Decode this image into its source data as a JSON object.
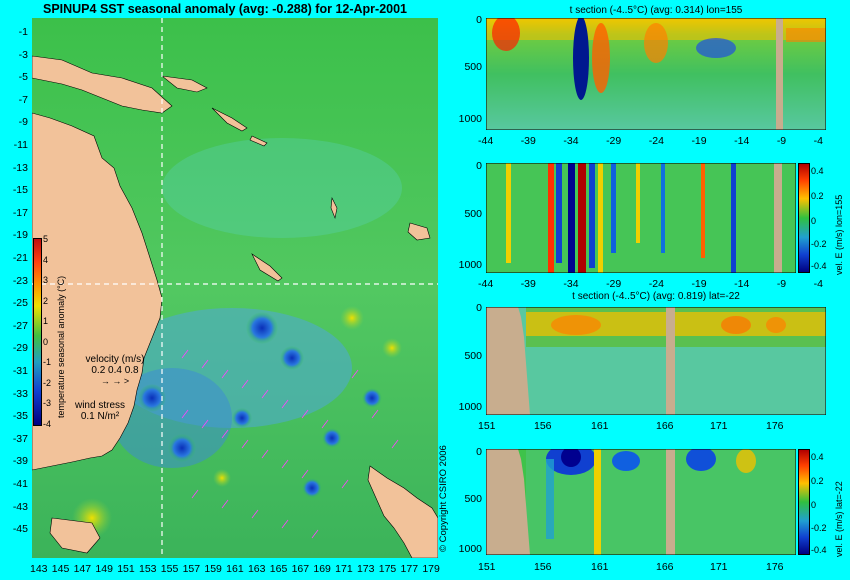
{
  "map": {
    "title": "SPINUP4 SST seasonal anomaly  (avg: -0.288) for 12-Apr-2001",
    "lat_labels": [
      "-1",
      "-3",
      "-5",
      "-7",
      "-9",
      "-11",
      "-13",
      "-15",
      "-17",
      "-19",
      "-21",
      "-23",
      "-25",
      "-27",
      "-29",
      "-31",
      "-33",
      "-35",
      "-37",
      "-39",
      "-41",
      "-43",
      "-45"
    ],
    "lon_labels": [
      "143",
      "145",
      "147",
      "149",
      "151",
      "153",
      "155",
      "157",
      "159",
      "161",
      "163",
      "165",
      "167",
      "169",
      "171",
      "173",
      "175",
      "177",
      "179"
    ],
    "colorbar_ticks": [
      "5",
      "4",
      "3",
      "2",
      "1",
      "0",
      "-1",
      "-2",
      "-3",
      "-4"
    ],
    "colorbar_label": "temperature seasonal anomaly (°C)",
    "velocity_label": "velocity (m/s)",
    "velocity_scale": "0.2 0.4 0.8",
    "wind_label": "wind stress",
    "wind_scale": "0.1 N/m²",
    "section_lon": 155,
    "section_lat": -22
  },
  "panels": [
    {
      "title": "t section (-4..5°C) (avg: 0.314) lon=155",
      "x_ticks": [
        "-44",
        "-39",
        "-34",
        "-29",
        "-24",
        "-19",
        "-14",
        "-9",
        "-4"
      ],
      "y_ticks": [
        "0",
        "500",
        "1000"
      ]
    },
    {
      "title": "",
      "x_ticks": [
        "-44",
        "-39",
        "-34",
        "-29",
        "-24",
        "-19",
        "-14",
        "-9",
        "-4"
      ],
      "y_ticks": [
        "0",
        "500",
        "1000"
      ],
      "colorbar_ticks": [
        "0.4",
        "0.2",
        "0",
        "-0.2",
        "-0.4"
      ],
      "colorbar_label": "vel. E (m/s) lon=155"
    },
    {
      "title": "t section (-4..5°C) (avg: 0.819) lat=-22",
      "x_ticks": [
        "151",
        "156",
        "161",
        "166",
        "171",
        "176"
      ],
      "y_ticks": [
        "0",
        "500",
        "1000"
      ]
    },
    {
      "title": "",
      "x_ticks": [
        "151",
        "156",
        "161",
        "166",
        "171",
        "176"
      ],
      "y_ticks": [
        "0",
        "500",
        "1000"
      ],
      "colorbar_ticks": [
        "0.4",
        "0.2",
        "0",
        "-0.2",
        "-0.4"
      ],
      "colorbar_label": "vel. E (m/s) lat=-22"
    }
  ],
  "copyright": "© Copyright CSIRO 2006",
  "colors": {
    "background": "#00ffff",
    "land": "#f2c29a",
    "ocean": "#35c24a",
    "section_land": "#c8ad8e"
  }
}
